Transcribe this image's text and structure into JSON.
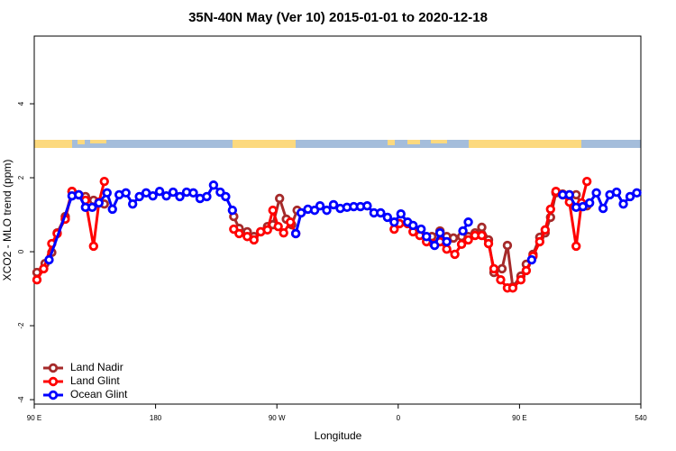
{
  "chart_data": {
    "type": "line",
    "title": "35N-40N May (Ver 10)   2015-01-01 to 2020-12-18",
    "x_label": "Longitude",
    "y_label": "XCO2 - MLO trend (ppm)",
    "xlim": [
      90,
      540
    ],
    "ylim": [
      -4.12,
      5.83
    ],
    "xticks": [
      {
        "value": 90,
        "label": "90 E"
      },
      180,
      {
        "value": 270,
        "label": "90 W"
      },
      {
        "value": 360,
        "label": "0"
      },
      {
        "value": 450,
        "label": "90 E"
      },
      540
    ],
    "yticks": [
      -4,
      -2,
      0,
      2,
      4
    ],
    "legend": "lower left",
    "series": [
      {
        "name": "Land Nadir",
        "color": "#a52a2a",
        "x": [
          92,
          98,
          103,
          107,
          113,
          118,
          123,
          128,
          134,
          138,
          142,
          null,
          238,
          242,
          248,
          253,
          258,
          263,
          267,
          272,
          277,
          281,
          285,
          null,
          385,
          391,
          396,
          401,
          407,
          412,
          417,
          422,
          427,
          431,
          437,
          441,
          445,
          451,
          455,
          460,
          465,
          469,
          473,
          477,
          482,
          487,
          492,
          496,
          500
        ],
        "values": [
          -0.56,
          -0.32,
          -0.02,
          0.51,
          0.95,
          1.63,
          1.54,
          1.49,
          1.39,
          1.32,
          1.29,
          null,
          0.95,
          0.63,
          0.54,
          0.41,
          0.54,
          0.68,
          0.73,
          1.44,
          0.88,
          0.73,
          1.12,
          null,
          0.41,
          0.56,
          0.41,
          0.37,
          0.41,
          0.41,
          0.51,
          0.66,
          0.32,
          -0.56,
          -0.46,
          0.17,
          -0.95,
          -0.66,
          -0.34,
          -0.07,
          0.39,
          0.51,
          0.93,
          1.59,
          1.56,
          1.54,
          1.54,
          1.29,
          1.24
        ]
      },
      {
        "name": "Land Glint",
        "color": "#ff0000",
        "x": [
          92,
          97,
          103,
          107,
          113,
          118,
          123,
          128,
          134,
          138,
          142,
          null,
          238,
          242,
          248,
          253,
          258,
          263,
          267,
          271,
          275,
          280,
          284,
          null,
          357,
          361,
          367,
          371,
          376,
          381,
          386,
          391,
          396,
          402,
          407,
          412,
          417,
          422,
          427,
          431,
          436,
          441,
          445,
          451,
          455,
          460,
          465,
          469,
          473,
          477,
          482,
          487,
          492,
          496,
          500
        ],
        "values": [
          -0.76,
          -0.46,
          0.22,
          0.49,
          0.88,
          1.63,
          1.54,
          1.39,
          0.15,
          1.34,
          1.9,
          null,
          0.61,
          0.49,
          0.41,
          0.32,
          0.54,
          0.59,
          1.12,
          0.68,
          0.51,
          0.8,
          0.49,
          null,
          0.61,
          0.76,
          0.76,
          0.54,
          0.44,
          0.27,
          0.22,
          0.27,
          0.07,
          -0.07,
          0.2,
          0.32,
          0.44,
          0.44,
          0.22,
          -0.46,
          -0.76,
          -0.98,
          -0.98,
          -0.76,
          -0.51,
          -0.12,
          0.27,
          0.59,
          1.15,
          1.63,
          1.54,
          1.34,
          0.15,
          1.32,
          1.9
        ]
      },
      {
        "name": "Ocean Glint",
        "color": "#0000ff",
        "x": [
          101,
          118,
          123,
          128,
          133,
          138,
          144,
          148,
          153,
          158,
          163,
          168,
          173,
          178,
          183,
          188,
          193,
          198,
          203,
          208,
          213,
          218,
          223,
          228,
          232,
          237,
          null,
          284,
          288,
          293,
          298,
          302,
          307,
          312,
          317,
          322,
          327,
          332,
          337,
          342,
          347,
          352,
          357,
          362,
          367,
          371,
          377,
          381,
          387,
          391,
          396,
          null,
          408,
          412,
          null,
          459,
          null,
          482,
          487,
          492,
          497,
          502,
          507,
          512,
          517,
          522,
          527,
          532,
          537
        ],
        "values": [
          -0.22,
          1.51,
          1.54,
          1.2,
          1.2,
          1.32,
          1.59,
          1.15,
          1.54,
          1.59,
          1.29,
          1.49,
          1.59,
          1.51,
          1.63,
          1.51,
          1.61,
          1.49,
          1.61,
          1.59,
          1.44,
          1.49,
          1.8,
          1.61,
          1.49,
          1.12,
          null,
          0.49,
          1.05,
          1.15,
          1.12,
          1.24,
          1.12,
          1.27,
          1.17,
          1.2,
          1.22,
          1.22,
          1.24,
          1.05,
          1.05,
          0.93,
          0.8,
          1.02,
          0.8,
          0.71,
          0.61,
          0.41,
          0.17,
          0.51,
          0.27,
          null,
          0.56,
          0.8,
          null,
          -0.22,
          null,
          1.54,
          1.54,
          1.2,
          1.22,
          1.32,
          1.59,
          1.17,
          1.54,
          1.61,
          1.29,
          1.49,
          1.59
        ]
      }
    ]
  }
}
